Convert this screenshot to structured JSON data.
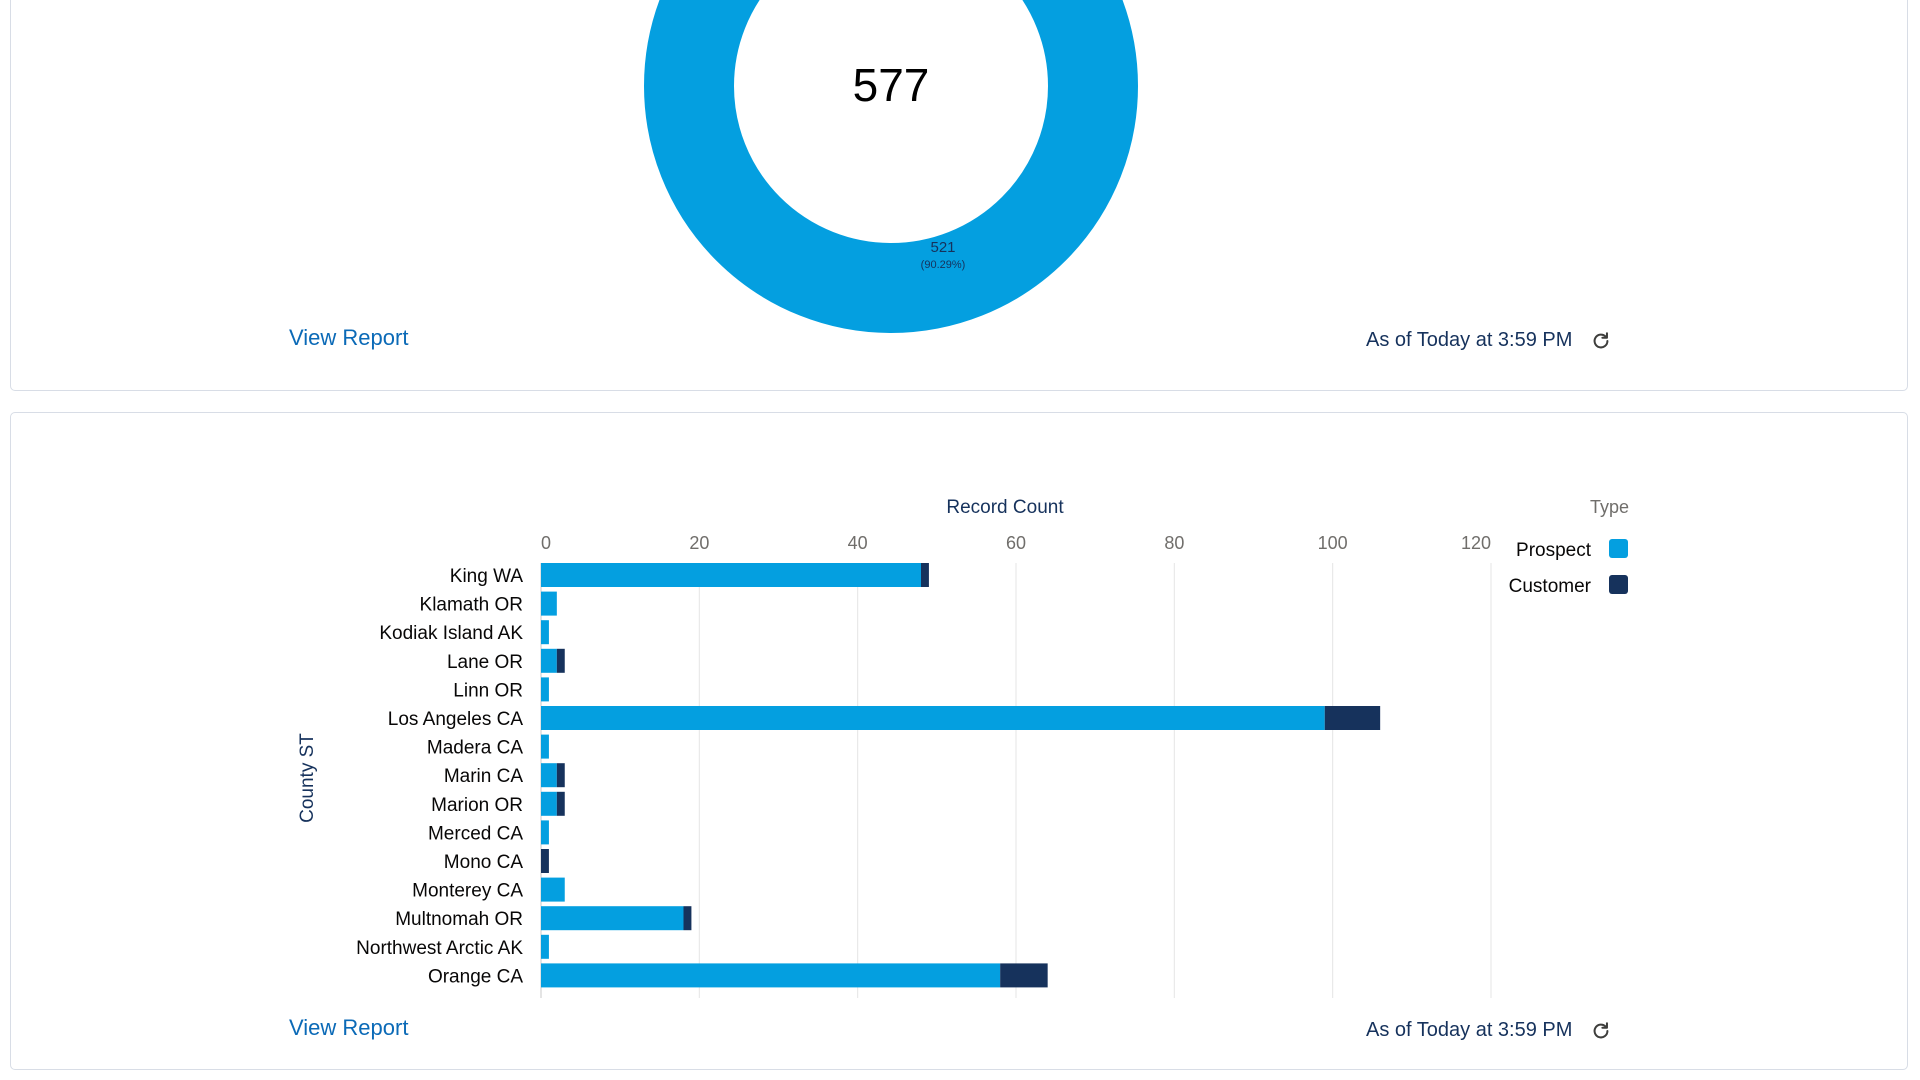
{
  "colors": {
    "prospect": "#049fe0",
    "customer": "#16325c",
    "link": "#0b6ab7"
  },
  "donut_card": {
    "total": "577",
    "segment_value": "521",
    "segment_percent": "(90.29%)",
    "view_report": "View Report",
    "as_of": "As of Today at 3:59 PM",
    "refresh_icon": "refresh-icon"
  },
  "bar_card": {
    "view_report": "View Report",
    "as_of": "As of Today at 3:59 PM",
    "refresh_icon": "refresh-icon"
  },
  "chart_data": {
    "type": "bar",
    "orientation": "horizontal",
    "stacked": true,
    "title": "",
    "xlabel": "Record Count",
    "ylabel": "County ST",
    "xlim": [
      0,
      120
    ],
    "xticks": [
      0,
      20,
      40,
      60,
      80,
      100,
      120
    ],
    "legend_title": "Type",
    "legend_position": "top-right",
    "categories": [
      "King WA",
      "Klamath OR",
      "Kodiak Island AK",
      "Lane OR",
      "Linn OR",
      "Los Angeles CA",
      "Madera CA",
      "Marin CA",
      "Marion OR",
      "Merced CA",
      "Mono CA",
      "Monterey CA",
      "Multnomah OR",
      "Northwest Arctic AK",
      "Orange CA"
    ],
    "series": [
      {
        "name": "Prospect",
        "values": [
          48,
          2,
          1,
          2,
          1,
          99,
          1,
          2,
          2,
          1,
          0,
          3,
          18,
          1,
          58
        ]
      },
      {
        "name": "Customer",
        "values": [
          1,
          0,
          0,
          1,
          0,
          7,
          0,
          1,
          1,
          0,
          1,
          0,
          1,
          0,
          6
        ]
      }
    ]
  }
}
